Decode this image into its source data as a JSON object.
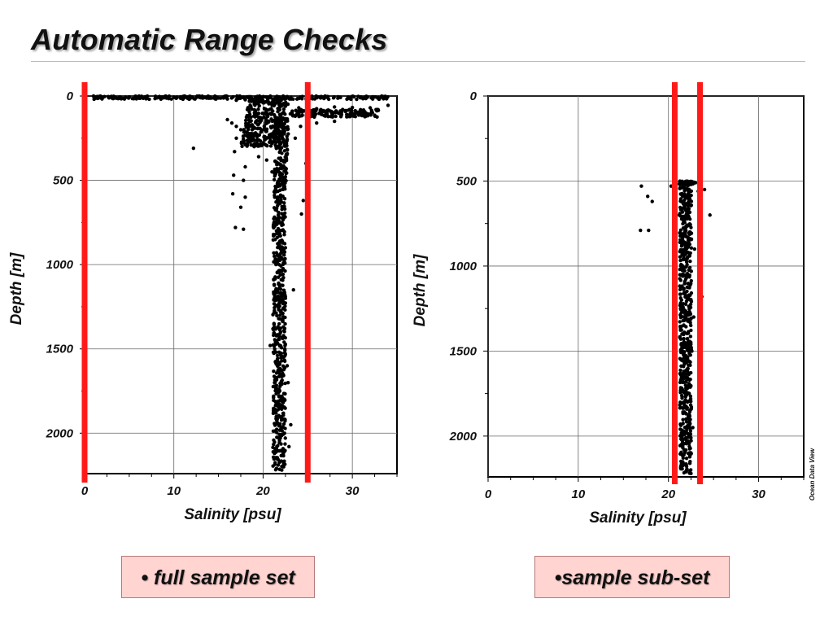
{
  "slide": {
    "title": "Automatic Range Checks"
  },
  "captions": {
    "left": "• full sample set",
    "right": "•sample sub-set"
  },
  "colors": {
    "range_line": "#ff1a1a",
    "points": "#000000",
    "grid": "#666666",
    "caption_bg": "#ffd4d1"
  },
  "chart_data": [
    {
      "type": "scatter",
      "xlabel": "Salinity [psu]",
      "ylabel": "Depth [m]",
      "xlim": [
        0,
        35
      ],
      "ylim": [
        2240,
        0
      ],
      "y_inverted": true,
      "x_ticks": [
        "0",
        "10",
        "20",
        "30"
      ],
      "y_ticks": [
        "0",
        "500",
        "1000",
        "1500",
        "2000"
      ],
      "grid": true,
      "range_limits": [
        0,
        25
      ],
      "points": [
        [
          1,
          0
        ],
        [
          3,
          2
        ],
        [
          5,
          5
        ],
        [
          7,
          3
        ],
        [
          9,
          2
        ],
        [
          10,
          8
        ],
        [
          11,
          4
        ],
        [
          12,
          6
        ],
        [
          13,
          10
        ],
        [
          14,
          5
        ],
        [
          15,
          12
        ],
        [
          16,
          18
        ],
        [
          17,
          25
        ],
        [
          18,
          22
        ],
        [
          19,
          35
        ],
        [
          20,
          40
        ],
        [
          21,
          55
        ],
        [
          22,
          60
        ],
        [
          24,
          70
        ],
        [
          26,
          75
        ],
        [
          28,
          65
        ],
        [
          30,
          68
        ],
        [
          32,
          70
        ],
        [
          34,
          55
        ],
        [
          12.2,
          310
        ],
        [
          16,
          140
        ],
        [
          16.5,
          160
        ],
        [
          17,
          180
        ],
        [
          17.5,
          200
        ],
        [
          17,
          250
        ],
        [
          17.6,
          280
        ],
        [
          16.8,
          330
        ],
        [
          18,
          420
        ],
        [
          16.7,
          470
        ],
        [
          17.8,
          500
        ],
        [
          16.6,
          580
        ],
        [
          18,
          600
        ],
        [
          17.5,
          660
        ],
        [
          16.9,
          780
        ],
        [
          17.8,
          790
        ],
        [
          18.5,
          260
        ],
        [
          19,
          300
        ],
        [
          19.5,
          360
        ],
        [
          20.4,
          380
        ],
        [
          21,
          450
        ],
        [
          21.3,
          600
        ],
        [
          21.5,
          800
        ],
        [
          21.8,
          1000
        ],
        [
          22.5,
          1200
        ],
        [
          21.2,
          1210
        ],
        [
          20.8,
          1480
        ],
        [
          21.3,
          1500
        ],
        [
          21.8,
          1520
        ],
        [
          22.7,
          1600
        ],
        [
          22.8,
          1700
        ],
        [
          23.1,
          1950
        ],
        [
          22.9,
          2080
        ],
        [
          22.3,
          2200
        ],
        [
          23.4,
          1150
        ],
        [
          24.8,
          400
        ],
        [
          24.5,
          620
        ],
        [
          24.3,
          700
        ],
        [
          28,
          150
        ],
        [
          26,
          160
        ],
        [
          22.5,
          900
        ],
        [
          21.9,
          1300
        ],
        [
          22.1,
          1800
        ],
        [
          22.4,
          2000
        ],
        [
          22.2,
          2100
        ],
        [
          20.2,
          260
        ],
        [
          19.8,
          200
        ],
        [
          21.1,
          220
        ],
        [
          23.6,
          250
        ],
        [
          24.2,
          180
        ]
      ]
    },
    {
      "type": "scatter",
      "xlabel": "Salinity [psu]",
      "ylabel": "Depth [m]",
      "xlim": [
        0,
        35
      ],
      "ylim": [
        2240,
        0
      ],
      "y_inverted": true,
      "x_ticks": [
        "0",
        "10",
        "20",
        "30"
      ],
      "y_ticks": [
        "0",
        "500",
        "1000",
        "1500",
        "2000"
      ],
      "grid": true,
      "range_limits": [
        20.7,
        23.5
      ],
      "watermark": "Ocean Data View",
      "points": [
        [
          17,
          530
        ],
        [
          17.7,
          590
        ],
        [
          18.2,
          620
        ],
        [
          16.9,
          790
        ],
        [
          17.8,
          790
        ],
        [
          20.3,
          530
        ],
        [
          20.7,
          650
        ],
        [
          20.6,
          760
        ],
        [
          21.2,
          700
        ],
        [
          23.3,
          560
        ],
        [
          24,
          550
        ],
        [
          24.6,
          700
        ],
        [
          23.7,
          1180
        ],
        [
          22.5,
          1200
        ],
        [
          21.5,
          1400
        ],
        [
          21.7,
          1620
        ],
        [
          22.1,
          1800
        ],
        [
          22.3,
          2000
        ],
        [
          22.4,
          2150
        ],
        [
          22.5,
          2220
        ],
        [
          21.4,
          510
        ],
        [
          23,
          510
        ],
        [
          22.9,
          900
        ],
        [
          21.6,
          1000
        ],
        [
          22.8,
          1300
        ],
        [
          22.6,
          1500
        ],
        [
          21.9,
          1700
        ],
        [
          22.7,
          1950
        ]
      ]
    }
  ]
}
